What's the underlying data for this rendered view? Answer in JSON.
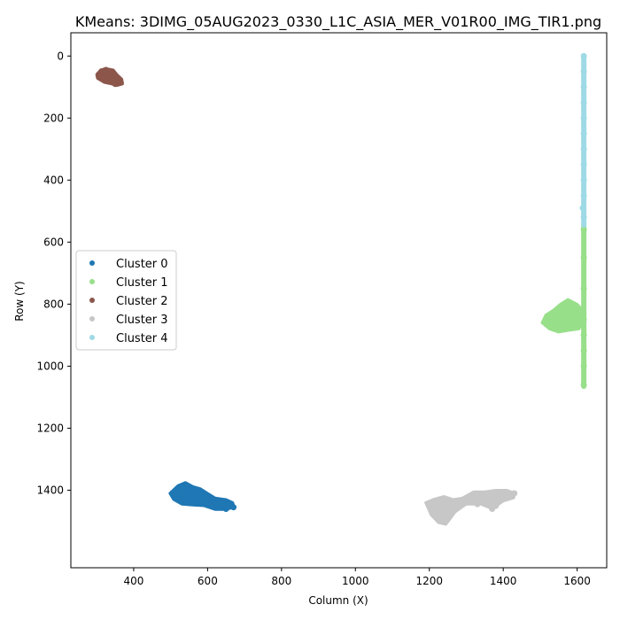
{
  "chart_data": {
    "type": "scatter",
    "title": "KMeans: 3DIMG_05AUG2023_0330_L1C_ASIA_MER_V01R00_IMG_TIR1.png",
    "xlabel": "Column (X)",
    "ylabel": "Row (Y)",
    "xlim": [
      230,
      1680
    ],
    "ylim": [
      1650,
      -75
    ],
    "y_inverted": true,
    "grid": false,
    "legend_placement": "center-left",
    "xticks": [
      400,
      600,
      800,
      1000,
      1200,
      1400,
      1600
    ],
    "yticks": [
      0,
      200,
      400,
      600,
      800,
      1000,
      1200,
      1400
    ],
    "series": [
      {
        "name": "Cluster 0",
        "color": "#1f77b4",
        "x": [
          505,
          520,
          535,
          550,
          565,
          580,
          540,
          560,
          600,
          620,
          640,
          660,
          670,
          510,
          530,
          555,
          575,
          595,
          615,
          635,
          650,
          525,
          545,
          585,
          610
        ],
        "y": [
          1410,
          1395,
          1390,
          1400,
          1405,
          1415,
          1425,
          1430,
          1430,
          1440,
          1445,
          1450,
          1455,
          1420,
          1435,
          1440,
          1420,
          1425,
          1450,
          1435,
          1460,
          1410,
          1415,
          1440,
          1430
        ]
      },
      {
        "name": "Cluster 1",
        "color": "#98df8a",
        "x": [
          1515,
          1530,
          1545,
          1560,
          1570,
          1585,
          1600,
          1540,
          1555,
          1565,
          1575,
          1595,
          1520,
          1550,
          1580,
          1618,
          1618,
          1618,
          1618,
          1618,
          1618,
          1618,
          1618
        ],
        "y": [
          860,
          840,
          830,
          820,
          800,
          810,
          830,
          870,
          880,
          860,
          850,
          870,
          850,
          845,
          835,
          560,
          650,
          750,
          850,
          900,
          950,
          1000,
          1060
        ]
      },
      {
        "name": "Cluster 2",
        "color": "#8c564b",
        "x": [
          305,
          315,
          325,
          335,
          345,
          355,
          365,
          310,
          320,
          340,
          350,
          360,
          330
        ],
        "y": [
          60,
          50,
          45,
          55,
          65,
          75,
          85,
          70,
          75,
          80,
          90,
          80,
          60
        ]
      },
      {
        "name": "Cluster 3",
        "color": "#c7c7c7",
        "x": [
          1200,
          1220,
          1240,
          1260,
          1280,
          1300,
          1320,
          1340,
          1360,
          1380,
          1400,
          1420,
          1430,
          1210,
          1235,
          1250,
          1265,
          1330,
          1370,
          1390,
          1410
        ],
        "y": [
          1445,
          1460,
          1480,
          1465,
          1440,
          1430,
          1420,
          1435,
          1440,
          1450,
          1420,
          1415,
          1410,
          1440,
          1500,
          1470,
          1450,
          1445,
          1460,
          1430,
          1425
        ]
      },
      {
        "name": "Cluster 4",
        "color": "#9edae5",
        "x": [
          1618,
          1618,
          1618,
          1618,
          1618,
          1618,
          1618,
          1618,
          1618,
          1618,
          1618,
          1615
        ],
        "y": [
          0,
          50,
          100,
          150,
          200,
          250,
          300,
          350,
          400,
          450,
          520,
          490
        ]
      }
    ]
  }
}
